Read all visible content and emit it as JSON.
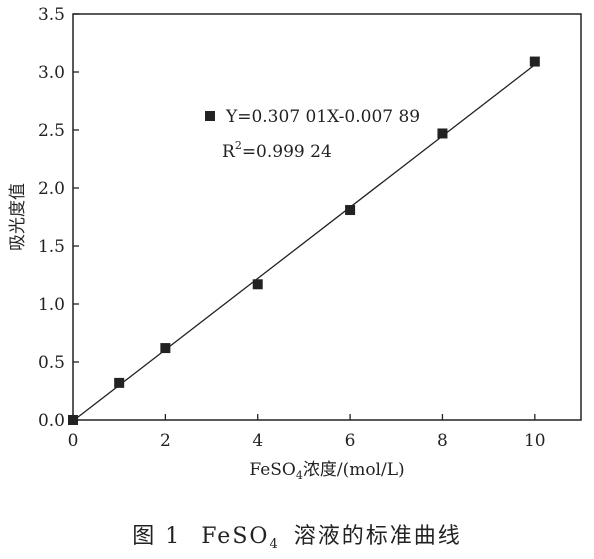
{
  "chart_data": {
    "type": "scatter",
    "caption_prefix": "图 1",
    "caption_formula": "FeSO",
    "caption_sub": "4",
    "caption_suffix": "溶液的标准曲线",
    "xlabel_prefix": "FeSO",
    "xlabel_sub": "4",
    "xlabel_suffix": "浓度/(mol/L)",
    "ylabel": "吸光度值",
    "xlim": [
      0,
      11
    ],
    "ylim": [
      0,
      3.5
    ],
    "x_ticks": [
      "0",
      "2",
      "4",
      "6",
      "8",
      "10"
    ],
    "y_ticks": [
      "0.0",
      "0.5",
      "1.0",
      "1.5",
      "2.0",
      "2.5",
      "3.0",
      "3.5"
    ],
    "series": [
      {
        "x": [
          0,
          1,
          2,
          4,
          6,
          8,
          10
        ],
        "y": [
          0.0,
          0.32,
          0.62,
          1.17,
          1.81,
          2.47,
          3.09
        ]
      }
    ],
    "fit": {
      "slope": 0.30701,
      "intercept": -0.00789,
      "x_range": [
        0,
        10
      ]
    },
    "legend_position": "top-left",
    "legend_equation": "Y=0.307 01X-0.007 89",
    "r2_prefix": "R",
    "r2_sup": "2",
    "r2_value": "=0.999 24",
    "grid": false,
    "marker": "square",
    "colors": {
      "marker": "#222222",
      "line": "#222222",
      "axis": "#222222"
    }
  }
}
